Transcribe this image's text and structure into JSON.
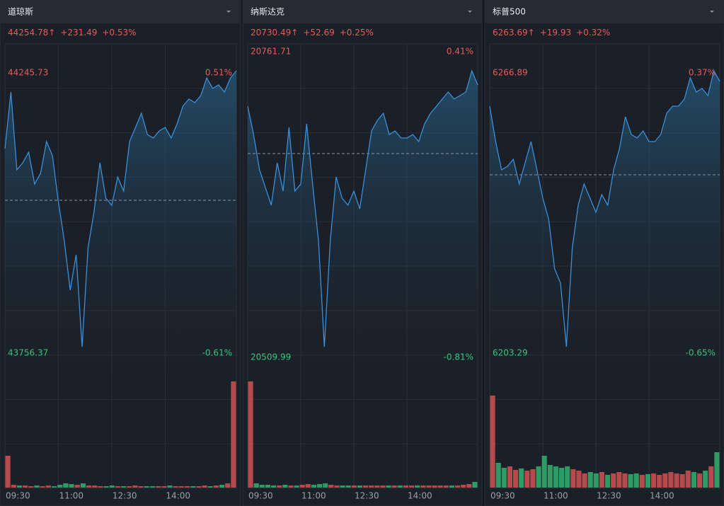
{
  "chart_data": [
    {
      "type": "line",
      "title": "道琼斯",
      "quote": [
        "44254.78↑",
        "+231.49",
        "+0.53%"
      ],
      "values": [
        44113.5,
        44212.4,
        44076.4,
        44088.8,
        44107.3,
        44051.7,
        44070.2,
        44125.9,
        44101.1,
        44020.8,
        43952.8,
        43866.3,
        43928.1,
        43767.4,
        43940.5,
        44002.3,
        44088.8,
        44027.0,
        44014.6,
        44064.0,
        44039.3,
        44125.9,
        44150.6,
        44175.3,
        44138.2,
        44132.0,
        44144.4,
        44150.6,
        44132.0,
        44156.7,
        44187.6,
        44200.0,
        44193.8,
        44206.2,
        44237.0,
        44218.5,
        44224.7,
        44212.4,
        44237.0,
        44249.4
      ],
      "volume": [
        45,
        4,
        3,
        3,
        2,
        3,
        2,
        3,
        2,
        4,
        6,
        5,
        4,
        6,
        3,
        3,
        2,
        2,
        3,
        2,
        2,
        2,
        3,
        2,
        2,
        2,
        2,
        2,
        3,
        2,
        2,
        2,
        2,
        2,
        3,
        2,
        3,
        4,
        6,
        150
      ],
      "color": "#3a8fd9",
      "baseline": 44023.29,
      "ylim": [
        43756.37,
        44245.73
      ],
      "yticks": [
        43756.37,
        44245.73
      ],
      "y2lim": [
        -0.61,
        0.51
      ],
      "y2ticks": [
        {
          "value": -0.61,
          "label": "-0.61%"
        },
        {
          "value": 0.51,
          "label": "0.51%"
        }
      ],
      "xlim": [
        0,
        39
      ],
      "xticks": [
        {
          "value": 0,
          "label": "09:30"
        },
        {
          "value": 9,
          "label": "11:00"
        },
        {
          "value": 18,
          "label": "12:30"
        },
        {
          "value": 27,
          "label": "14:00"
        }
      ]
    },
    {
      "type": "line",
      "title": "纳斯达克",
      "quote": [
        "20730.49↑",
        "+52.69",
        "+0.25%"
      ],
      "values": [
        20716.8,
        20693.5,
        20664.4,
        20649.8,
        20635.3,
        20670.2,
        20646.9,
        20699.4,
        20646.9,
        20652.7,
        20702.3,
        20652.7,
        20606.1,
        20518.7,
        20606.1,
        20658.6,
        20641.1,
        20635.3,
        20646.9,
        20632.3,
        20664.4,
        20696.4,
        20705.2,
        20711.0,
        20693.5,
        20696.4,
        20690.6,
        20690.6,
        20693.5,
        20687.7,
        20702.3,
        20711.0,
        20716.8,
        20722.7,
        20728.5,
        20722.7,
        20725.6,
        20728.5,
        20746.0,
        20734.3
      ],
      "volume": [
        150,
        6,
        4,
        4,
        3,
        3,
        4,
        3,
        3,
        4,
        5,
        4,
        5,
        6,
        4,
        3,
        3,
        3,
        3,
        3,
        3,
        3,
        3,
        3,
        3,
        3,
        3,
        3,
        3,
        3,
        3,
        3,
        3,
        3,
        3,
        3,
        3,
        4,
        5,
        8
      ],
      "color": "#3a8fd9",
      "baseline": 20677.8,
      "ylim": [
        20509.99,
        20761.71
      ],
      "yticks": [
        20509.99,
        20761.71
      ],
      "y2lim": [
        -0.81,
        0.41
      ],
      "y2ticks": [
        {
          "value": -0.81,
          "label": "-0.81%"
        },
        {
          "value": 0.41,
          "label": "0.41%"
        }
      ],
      "xlim": [
        0,
        39
      ],
      "xticks": [
        {
          "value": 0,
          "label": "09:30"
        },
        {
          "value": 9,
          "label": "11:00"
        },
        {
          "value": 18,
          "label": "12:30"
        },
        {
          "value": 27,
          "label": "14:00"
        }
      ]
    },
    {
      "type": "line",
      "title": "标普500",
      "quote": [
        "6263.69↑",
        "+19.93",
        "+0.32%"
      ],
      "values": [
        6259.34,
        6251.31,
        6244.89,
        6245.69,
        6247.3,
        6241.68,
        6246.49,
        6251.31,
        6244.89,
        6238.46,
        6233.65,
        6222.4,
        6219.19,
        6204.74,
        6227.22,
        6236.86,
        6241.68,
        6238.46,
        6235.25,
        6239.27,
        6236.86,
        6244.89,
        6249.71,
        6256.93,
        6252.92,
        6252.11,
        6253.72,
        6251.31,
        6251.31,
        6252.92,
        6257.74,
        6259.34,
        6259.34,
        6260.95,
        6265.77,
        6262.55,
        6263.36,
        6261.75,
        6267.37,
        6264.96
      ],
      "volume": [
        130,
        35,
        28,
        30,
        25,
        27,
        24,
        26,
        30,
        45,
        32,
        30,
        28,
        30,
        26,
        24,
        20,
        22,
        20,
        22,
        18,
        20,
        22,
        20,
        19,
        20,
        18,
        19,
        20,
        18,
        20,
        22,
        20,
        19,
        24,
        22,
        20,
        24,
        30,
        50
      ],
      "color": "#3a8fd9",
      "baseline": 6243.76,
      "ylim": [
        6203.29,
        6266.89
      ],
      "yticks": [
        6203.29,
        6266.89
      ],
      "y2lim": [
        -0.65,
        0.37
      ],
      "y2ticks": [
        {
          "value": -0.65,
          "label": "-0.65%"
        },
        {
          "value": 0.37,
          "label": "0.37%"
        }
      ],
      "xlim": [
        0,
        39
      ],
      "xticks": [
        {
          "value": 0,
          "label": "09:30"
        },
        {
          "value": 9,
          "label": "11:00"
        },
        {
          "value": 18,
          "label": "12:30"
        },
        {
          "value": 27,
          "label": "14:00"
        }
      ]
    }
  ]
}
